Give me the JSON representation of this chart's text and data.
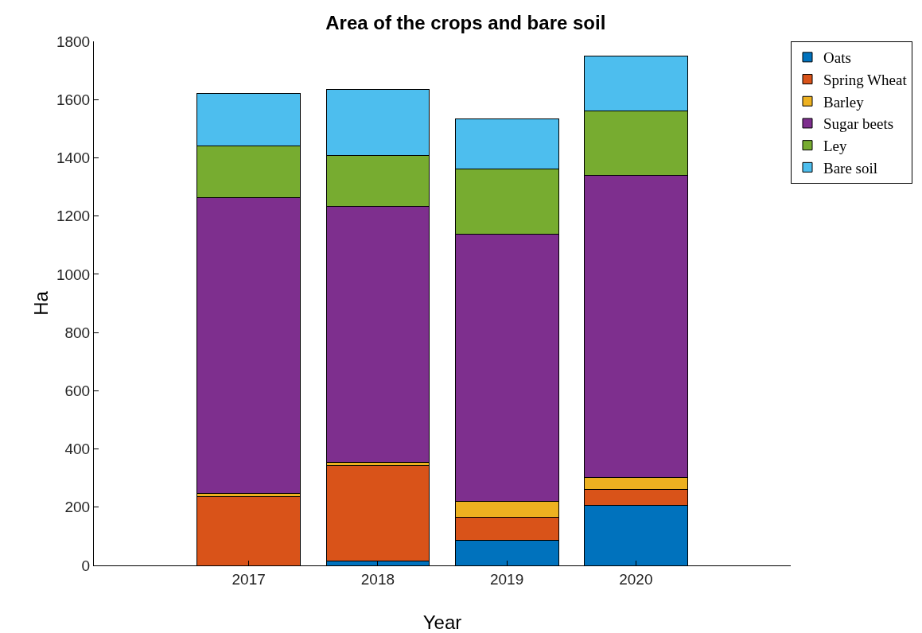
{
  "chart_data": {
    "type": "bar",
    "title": "Area of the crops and bare soil",
    "xlabel": "Year",
    "ylabel": "Ha",
    "stacked": true,
    "x": [
      2017,
      2018,
      2019,
      2020
    ],
    "xlim": [
      2015.8,
      2021.2
    ],
    "xticks": [
      2017,
      2018,
      2019,
      2020
    ],
    "ylim": [
      0,
      1800
    ],
    "yticks": [
      0,
      200,
      400,
      600,
      800,
      1000,
      1200,
      1400,
      1600,
      1800
    ],
    "grid": false,
    "legend": "top right",
    "series": [
      {
        "name": "Oats",
        "color": "#0072bd",
        "values": [
          null,
          16,
          85,
          205
        ]
      },
      {
        "name": "Spring Wheat",
        "color": "#d95319",
        "values": [
          235,
          328,
          79,
          57
        ]
      },
      {
        "name": "Barley",
        "color": "#edb120",
        "values": [
          12,
          11,
          57,
          39
        ]
      },
      {
        "name": "Sugar beets",
        "color": "#7e2f8e",
        "values": [
          1015,
          877,
          918,
          1038
        ]
      },
      {
        "name": "Ley",
        "color": "#77ac30",
        "values": [
          178,
          175,
          222,
          221
        ]
      },
      {
        "name": "Bare soil",
        "color": "#4dbeee",
        "values": [
          180,
          227,
          172,
          189
        ]
      }
    ]
  }
}
